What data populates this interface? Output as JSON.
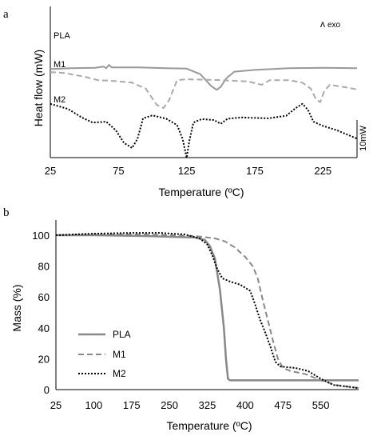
{
  "chart_data": [
    {
      "panel": "a",
      "type": "line",
      "xlabel": "Temperature (ºC)",
      "ylabel": "Heat flow  (mW)",
      "xlim": [
        25,
        250
      ],
      "xticks": [
        "25",
        "75",
        "125",
        "175",
        "225"
      ],
      "annotations": {
        "exo": "exo",
        "scale_bar": "10mW"
      },
      "grid": false,
      "legend": "inline",
      "series": [
        {
          "name": "PLA",
          "color": "#999999",
          "style": "solid",
          "points": [
            [
              25,
              0.54
            ],
            [
              40,
              0.56
            ],
            [
              58,
              0.57
            ],
            [
              64,
              0.6
            ],
            [
              66,
              0.56
            ],
            [
              68,
              0.64
            ],
            [
              70,
              0.58
            ],
            [
              90,
              0.58
            ],
            [
              110,
              0.56
            ],
            [
              125,
              0.55
            ],
            [
              135,
              0.42
            ],
            [
              143,
              0.14
            ],
            [
              147,
              0.05
            ],
            [
              150,
              0.12
            ],
            [
              154,
              0.32
            ],
            [
              160,
              0.48
            ],
            [
              175,
              0.52
            ],
            [
              200,
              0.56
            ],
            [
              225,
              0.57
            ],
            [
              250,
              0.56
            ]
          ]
        },
        {
          "name": "M1",
          "color": "#aaaaaa",
          "style": "dashed",
          "points": [
            [
              25,
              0.47
            ],
            [
              35,
              0.45
            ],
            [
              50,
              0.36
            ],
            [
              60,
              0.28
            ],
            [
              72,
              0.26
            ],
            [
              85,
              0.22
            ],
            [
              95,
              0.08
            ],
            [
              103,
              -0.3
            ],
            [
              108,
              -0.38
            ],
            [
              112,
              -0.2
            ],
            [
              118,
              0.28
            ],
            [
              125,
              0.3
            ],
            [
              150,
              0.28
            ],
            [
              170,
              0.25
            ],
            [
              180,
              0.17
            ],
            [
              186,
              0.28
            ],
            [
              200,
              0.28
            ],
            [
              210,
              0.22
            ],
            [
              216,
              0.08
            ],
            [
              220,
              -0.18
            ],
            [
              223,
              -0.24
            ],
            [
              226,
              0.02
            ],
            [
              230,
              0.17
            ],
            [
              240,
              0.12
            ],
            [
              250,
              0.06
            ]
          ]
        },
        {
          "name": "M2",
          "color": "#000000",
          "style": "dotted",
          "points": [
            [
              25,
              -0.28
            ],
            [
              38,
              -0.4
            ],
            [
              48,
              -0.6
            ],
            [
              56,
              -0.72
            ],
            [
              66,
              -0.7
            ],
            [
              73,
              -0.9
            ],
            [
              79,
              -1.2
            ],
            [
              85,
              -1.32
            ],
            [
              89,
              -1.1
            ],
            [
              93,
              -0.62
            ],
            [
              100,
              -0.55
            ],
            [
              110,
              -0.63
            ],
            [
              118,
              -0.78
            ],
            [
              122,
              -1.1
            ],
            [
              125,
              -1.55
            ],
            [
              127,
              -1.15
            ],
            [
              130,
              -0.72
            ],
            [
              136,
              -0.64
            ],
            [
              145,
              -0.66
            ],
            [
              150,
              -0.75
            ],
            [
              155,
              -0.63
            ],
            [
              165,
              -0.6
            ],
            [
              185,
              -0.62
            ],
            [
              198,
              -0.56
            ],
            [
              205,
              -0.38
            ],
            [
              210,
              -0.28
            ],
            [
              214,
              -0.42
            ],
            [
              218,
              -0.7
            ],
            [
              225,
              -0.8
            ],
            [
              235,
              -0.9
            ],
            [
              250,
              -1.1
            ]
          ]
        }
      ]
    },
    {
      "panel": "b",
      "type": "line",
      "xlabel": "Temperature (ºC)",
      "ylabel": "Mass (%)",
      "xlim": [
        25,
        625
      ],
      "ylim": [
        0,
        100
      ],
      "xticks": [
        25,
        100,
        175,
        250,
        325,
        400,
        475,
        550
      ],
      "yticks": [
        0,
        20,
        40,
        60,
        80,
        100
      ],
      "grid": false,
      "legend": "left-center",
      "series": [
        {
          "name": "PLA",
          "color": "#888888",
          "style": "solid",
          "points": [
            [
              25,
              100
            ],
            [
              100,
              100
            ],
            [
              200,
              99.5
            ],
            [
              300,
              98.5
            ],
            [
              320,
              97
            ],
            [
              330,
              93
            ],
            [
              340,
              85
            ],
            [
              350,
              65
            ],
            [
              358,
              40
            ],
            [
              362,
              20
            ],
            [
              366,
              7
            ],
            [
              370,
              6
            ],
            [
              400,
              6
            ],
            [
              500,
              6
            ],
            [
              625,
              6
            ]
          ]
        },
        {
          "name": "M1",
          "color": "#888888",
          "style": "dashed",
          "points": [
            [
              25,
              100
            ],
            [
              100,
              100.5
            ],
            [
              200,
              100.5
            ],
            [
              300,
              99.5
            ],
            [
              340,
              98
            ],
            [
              360,
              96
            ],
            [
              380,
              92
            ],
            [
              400,
              86
            ],
            [
              415,
              80
            ],
            [
              425,
              72
            ],
            [
              435,
              58
            ],
            [
              445,
              45
            ],
            [
              455,
              32
            ],
            [
              465,
              20
            ],
            [
              475,
              14
            ],
            [
              490,
              12
            ],
            [
              520,
              10
            ],
            [
              550,
              6
            ],
            [
              580,
              3
            ],
            [
              625,
              1
            ]
          ]
        },
        {
          "name": "M2",
          "color": "#000000",
          "style": "dotted",
          "points": [
            [
              25,
              100
            ],
            [
              100,
              101
            ],
            [
              180,
              101.5
            ],
            [
              230,
              101.5
            ],
            [
              280,
              100.5
            ],
            [
              310,
              98
            ],
            [
              325,
              94
            ],
            [
              335,
              87
            ],
            [
              345,
              78
            ],
            [
              355,
              72
            ],
            [
              370,
              70
            ],
            [
              390,
              68
            ],
            [
              410,
              64
            ],
            [
              420,
              55
            ],
            [
              430,
              45
            ],
            [
              440,
              37
            ],
            [
              450,
              28
            ],
            [
              460,
              18
            ],
            [
              470,
              15
            ],
            [
              500,
              14
            ],
            [
              525,
              12
            ],
            [
              550,
              7
            ],
            [
              575,
              3
            ],
            [
              625,
              1
            ]
          ]
        }
      ]
    }
  ]
}
